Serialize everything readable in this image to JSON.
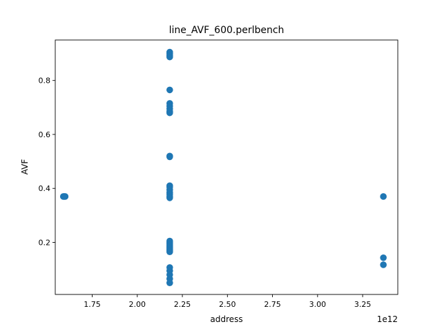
{
  "chart_data": {
    "type": "scatter",
    "title": "line_AVF_600.perlbench",
    "xlabel": "address",
    "ylabel": "AVF",
    "x_offset_label": "1e12",
    "xlim": [
      1.545,
      3.445
    ],
    "ylim": [
      0.007,
      0.95
    ],
    "xticks": [
      1.75,
      2.0,
      2.25,
      2.5,
      2.75,
      3.0,
      3.25
    ],
    "xtick_labels": [
      "1.75",
      "2.00",
      "2.25",
      "2.50",
      "2.75",
      "3.00",
      "3.25"
    ],
    "yticks": [
      0.2,
      0.4,
      0.6,
      0.8
    ],
    "ytick_labels": [
      "0.2",
      "0.4",
      "0.6",
      "0.8"
    ],
    "grid": false,
    "marker_color": "#1f77b4",
    "series": [
      {
        "points": [
          {
            "x": 1.59,
            "y": 0.37
          },
          {
            "x": 1.595,
            "y": 0.37
          },
          {
            "x": 1.6,
            "y": 0.37
          },
          {
            "x": 2.18,
            "y": 0.905
          },
          {
            "x": 2.18,
            "y": 0.9
          },
          {
            "x": 2.18,
            "y": 0.893
          },
          {
            "x": 2.18,
            "y": 0.887
          },
          {
            "x": 2.18,
            "y": 0.765
          },
          {
            "x": 2.18,
            "y": 0.715
          },
          {
            "x": 2.18,
            "y": 0.705
          },
          {
            "x": 2.18,
            "y": 0.695
          },
          {
            "x": 2.18,
            "y": 0.685
          },
          {
            "x": 2.18,
            "y": 0.68
          },
          {
            "x": 2.18,
            "y": 0.52
          },
          {
            "x": 2.18,
            "y": 0.517
          },
          {
            "x": 2.18,
            "y": 0.41
          },
          {
            "x": 2.18,
            "y": 0.405
          },
          {
            "x": 2.18,
            "y": 0.395
          },
          {
            "x": 2.18,
            "y": 0.385
          },
          {
            "x": 2.18,
            "y": 0.378
          },
          {
            "x": 2.18,
            "y": 0.37
          },
          {
            "x": 2.18,
            "y": 0.365
          },
          {
            "x": 2.18,
            "y": 0.205
          },
          {
            "x": 2.18,
            "y": 0.2
          },
          {
            "x": 2.18,
            "y": 0.195
          },
          {
            "x": 2.18,
            "y": 0.19
          },
          {
            "x": 2.18,
            "y": 0.185
          },
          {
            "x": 2.18,
            "y": 0.18
          },
          {
            "x": 2.18,
            "y": 0.175
          },
          {
            "x": 2.18,
            "y": 0.17
          },
          {
            "x": 2.18,
            "y": 0.165
          },
          {
            "x": 2.18,
            "y": 0.107
          },
          {
            "x": 2.18,
            "y": 0.095
          },
          {
            "x": 2.18,
            "y": 0.08
          },
          {
            "x": 2.18,
            "y": 0.065
          },
          {
            "x": 2.18,
            "y": 0.05
          },
          {
            "x": 3.365,
            "y": 0.37
          },
          {
            "x": 3.365,
            "y": 0.143
          },
          {
            "x": 3.365,
            "y": 0.117
          }
        ]
      }
    ]
  }
}
